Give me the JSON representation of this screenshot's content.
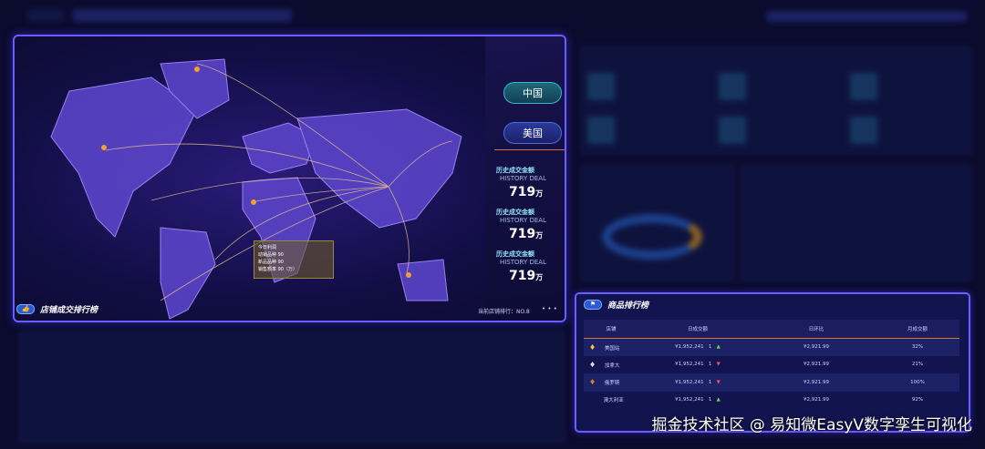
{
  "map_panel": {
    "country_buttons": [
      "中国",
      "美国"
    ],
    "stats": [
      {
        "title": "历史成交金额",
        "subtitle": "HISTORY DEAL",
        "value": "719",
        "unit": "万"
      },
      {
        "title": "历史成交金额",
        "subtitle": "HISTORY DEAL",
        "value": "719",
        "unit": "万"
      },
      {
        "title": "历史成交金额",
        "subtitle": "HISTORY DEAL",
        "value": "719",
        "unit": "万"
      }
    ],
    "title": "店铺成交排行榜",
    "current_rank": "当前店铺排行：NO.8",
    "more": "• • •",
    "tooltip": [
      "今日利润",
      "动销品种   90",
      "新品品种   90",
      "销售额率   90（万）"
    ]
  },
  "rank_panel": {
    "title": "商品排行榜",
    "columns": [
      "店铺",
      "日成交额",
      "日环比",
      "月成交额"
    ],
    "rows": [
      {
        "medal": "gold",
        "store": "美国站",
        "daily": "¥1,952,241",
        "n": "1",
        "trend": "up",
        "ratio": "¥2,921.99",
        "monthly": "32%"
      },
      {
        "medal": "silver",
        "store": "加拿大",
        "daily": "¥1,952,241",
        "n": "1",
        "trend": "down",
        "ratio": "¥2,921.99",
        "monthly": "21%"
      },
      {
        "medal": "bronze",
        "store": "俄罗斯",
        "daily": "¥1,952,241",
        "n": "1",
        "trend": "down",
        "ratio": "¥2,921.99",
        "monthly": "100%"
      },
      {
        "medal": "",
        "store": "澳大利亚",
        "daily": "¥1,952,241",
        "n": "1",
        "trend": "up",
        "ratio": "¥2,921.99",
        "monthly": "92%"
      }
    ]
  },
  "watermark": "掘金技术社区 @ 易知微EasyV数字孪生可视化",
  "colors": {
    "accent": "#6b5cff",
    "up": "#7bd34b",
    "down": "#ff4a6a"
  }
}
